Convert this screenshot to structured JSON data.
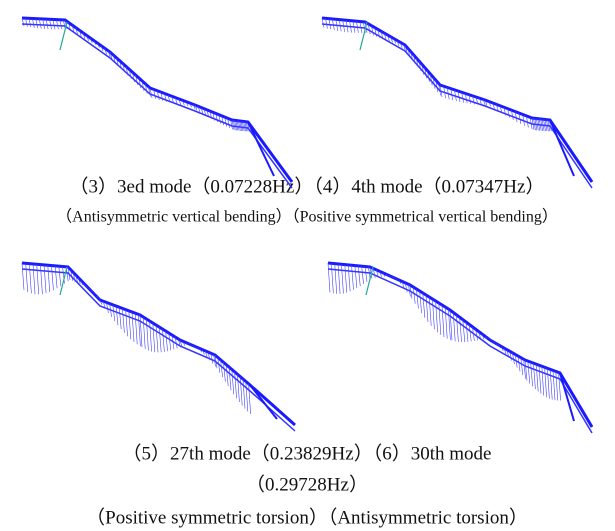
{
  "figure": {
    "captions": [
      "（3）3ed mode（0.07228Hz）（4）4th mode（0.07347Hz）",
      "（Antisymmetric vertical bending）（Positive symmetrical vertical bending）",
      "（5）27th mode（0.23829Hz）（6）30th mode",
      "（0.29728Hz）",
      "（Positive symmetric torsion）（Antisymmetric torsion）"
    ]
  }
}
